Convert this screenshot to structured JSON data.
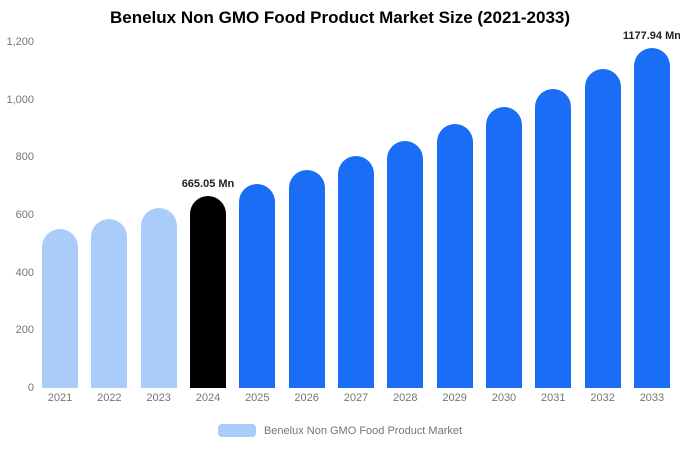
{
  "chart_data": {
    "type": "bar",
    "title": "Benelux Non GMO Food Product Market Size (2021-2033)",
    "categories": [
      "2021",
      "2022",
      "2023",
      "2024",
      "2025",
      "2026",
      "2027",
      "2028",
      "2029",
      "2030",
      "2031",
      "2032",
      "2033"
    ],
    "values": [
      550,
      586,
      624,
      665.05,
      709,
      755,
      805,
      857,
      914,
      973,
      1037,
      1105,
      1177.94
    ],
    "unit": "Mn",
    "ylim": [
      0,
      1200
    ],
    "ytick_values": [
      0,
      200,
      400,
      600,
      800,
      1000,
      1200
    ],
    "ytick_labels": [
      "0",
      "200",
      "400",
      "600",
      "800",
      "1,000",
      "1,200"
    ],
    "grid": false,
    "bar_colors": [
      "#a9ccf9",
      "#a9ccf9",
      "#a9ccf9",
      "#000000",
      "#1a6ef5",
      "#1a6ef5",
      "#1a6ef5",
      "#1a6ef5",
      "#1a6ef5",
      "#1a6ef5",
      "#1a6ef5",
      "#1a6ef5",
      "#1a6ef5"
    ],
    "data_labels": [
      {
        "index": 3,
        "text": "665.05 Mn"
      },
      {
        "index": 12,
        "text": "1177.94 Mn"
      }
    ],
    "legend_position": "bottom",
    "legend": [
      {
        "label": "Benelux Non GMO Food Product Market",
        "color": "#a9ccf9"
      }
    ]
  }
}
